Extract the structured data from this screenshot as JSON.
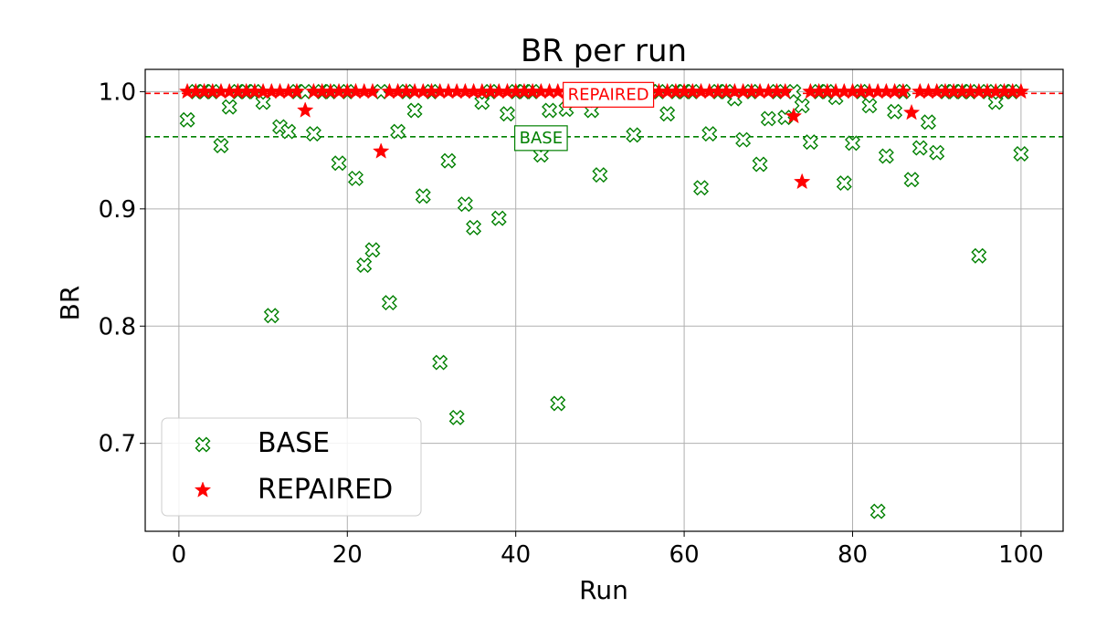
{
  "chart_data": {
    "type": "scatter",
    "title": "BR per run",
    "xlabel": "Run",
    "ylabel": "BR",
    "xlim": [
      -4,
      105
    ],
    "ylim": [
      0.625,
      1.019
    ],
    "xticks": [
      0,
      20,
      40,
      60,
      80,
      100
    ],
    "yticks": [
      0.7,
      0.8,
      0.9,
      1.0
    ],
    "xtick_labels": [
      "0",
      "20",
      "40",
      "60",
      "80",
      "100"
    ],
    "ytick_labels": [
      "0.7",
      "0.8",
      "0.9",
      "1.0"
    ],
    "grid": true,
    "legend_position": "lower-left",
    "series": [
      {
        "name": "BASE",
        "marker": "X-outline",
        "color": "#008000",
        "x": [
          1,
          2,
          3,
          4,
          5,
          6,
          7,
          8,
          9,
          10,
          11,
          12,
          13,
          14,
          15,
          16,
          17,
          18,
          19,
          20,
          21,
          22,
          23,
          24,
          25,
          26,
          27,
          28,
          29,
          30,
          31,
          32,
          33,
          34,
          35,
          36,
          37,
          38,
          39,
          40,
          41,
          42,
          43,
          44,
          45,
          46,
          47,
          48,
          49,
          50,
          51,
          52,
          53,
          54,
          55,
          56,
          57,
          58,
          59,
          60,
          61,
          62,
          63,
          64,
          65,
          66,
          67,
          68,
          69,
          70,
          71,
          72,
          73,
          74,
          75,
          76,
          77,
          78,
          79,
          80,
          81,
          82,
          83,
          84,
          85,
          86,
          87,
          88,
          89,
          90,
          91,
          92,
          93,
          94,
          95,
          96,
          97,
          98,
          99,
          100
        ],
        "y": [
          0.976,
          1.0,
          1.0,
          1.0,
          0.954,
          0.987,
          1.0,
          1.0,
          1.0,
          0.991,
          0.809,
          0.97,
          0.966,
          1.0,
          1.0,
          0.964,
          1.0,
          1.0,
          0.939,
          1.0,
          0.926,
          0.852,
          0.865,
          1.0,
          0.82,
          0.966,
          1.0,
          0.984,
          0.911,
          1.0,
          0.769,
          0.941,
          0.722,
          0.904,
          0.884,
          0.991,
          1.0,
          0.892,
          0.981,
          1.0,
          1.0,
          1.0,
          0.946,
          0.984,
          0.734,
          0.985,
          1.0,
          1.0,
          0.984,
          0.929,
          1.0,
          1.0,
          1.0,
          0.963,
          1.0,
          1.0,
          1.0,
          0.981,
          1.0,
          1.0,
          1.0,
          0.918,
          0.964,
          1.0,
          1.0,
          0.994,
          0.959,
          1.0,
          0.938,
          0.977,
          1.0,
          0.978,
          1.0,
          0.988,
          0.957,
          1.0,
          1.0,
          0.995,
          0.922,
          0.956,
          1.0,
          0.988,
          0.642,
          0.945,
          0.983,
          1.0,
          0.925,
          0.952,
          0.974,
          0.948,
          1.0,
          1.0,
          1.0,
          1.0,
          0.86,
          1.0,
          0.991,
          1.0,
          1.0,
          0.947
        ]
      },
      {
        "name": "REPAIRED",
        "marker": "star",
        "color": "#ff0000",
        "x": [
          1,
          2,
          3,
          4,
          5,
          6,
          7,
          8,
          9,
          10,
          11,
          12,
          13,
          14,
          15,
          16,
          17,
          18,
          19,
          20,
          21,
          22,
          23,
          24,
          25,
          26,
          27,
          28,
          29,
          30,
          31,
          32,
          33,
          34,
          35,
          36,
          37,
          38,
          39,
          40,
          41,
          42,
          43,
          44,
          45,
          46,
          47,
          48,
          49,
          50,
          51,
          52,
          53,
          54,
          55,
          56,
          57,
          58,
          59,
          60,
          61,
          62,
          63,
          64,
          65,
          66,
          67,
          68,
          69,
          70,
          71,
          72,
          73,
          74,
          75,
          76,
          77,
          78,
          79,
          80,
          81,
          82,
          83,
          84,
          85,
          86,
          87,
          88,
          89,
          90,
          91,
          92,
          93,
          94,
          95,
          96,
          97,
          98,
          99,
          100
        ],
        "y": [
          1.0,
          1.0,
          1.0,
          1.0,
          1.0,
          1.0,
          1.0,
          1.0,
          1.0,
          1.0,
          1.0,
          1.0,
          1.0,
          1.0,
          0.984,
          1.0,
          1.0,
          1.0,
          1.0,
          1.0,
          1.0,
          1.0,
          1.0,
          0.949,
          1.0,
          1.0,
          1.0,
          1.0,
          1.0,
          1.0,
          1.0,
          1.0,
          1.0,
          1.0,
          1.0,
          1.0,
          1.0,
          1.0,
          1.0,
          1.0,
          1.0,
          1.0,
          1.0,
          1.0,
          1.0,
          1.0,
          1.0,
          1.0,
          1.0,
          1.0,
          1.0,
          1.0,
          1.0,
          1.0,
          1.0,
          1.0,
          1.0,
          1.0,
          1.0,
          1.0,
          1.0,
          1.0,
          1.0,
          1.0,
          1.0,
          1.0,
          1.0,
          1.0,
          1.0,
          1.0,
          1.0,
          1.0,
          0.979,
          0.923,
          1.0,
          1.0,
          1.0,
          1.0,
          1.0,
          1.0,
          1.0,
          1.0,
          1.0,
          1.0,
          1.0,
          1.0,
          0.982,
          1.0,
          1.0,
          1.0,
          1.0,
          1.0,
          1.0,
          1.0,
          1.0,
          1.0,
          1.0,
          1.0,
          1.0,
          1.0
        ]
      }
    ],
    "reference_lines": [
      {
        "label": "REPAIRED",
        "y": 0.9985,
        "color": "#ff0000",
        "label_x": 51
      },
      {
        "label": "BASE",
        "y": 0.9615,
        "color": "#008000",
        "label_x": 43
      }
    ]
  }
}
